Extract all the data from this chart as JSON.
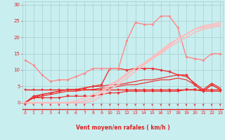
{
  "xlabel": "Vent moyen/en rafales ( km/h )",
  "background_color": "#c8eef0",
  "grid_color": "#a8cece",
  "line_color": "#dd2222",
  "x_ticks": [
    0,
    1,
    2,
    3,
    4,
    5,
    6,
    7,
    8,
    9,
    10,
    11,
    12,
    13,
    14,
    15,
    16,
    17,
    18,
    19,
    20,
    21,
    22,
    23
  ],
  "ylim": [
    -2,
    31
  ],
  "xlim": [
    -0.3,
    23.3
  ],
  "yticks": [
    0,
    5,
    10,
    15,
    20,
    25,
    30
  ],
  "lines": [
    {
      "x": [
        0,
        1,
        2,
        3,
        4,
        5,
        6,
        7,
        8,
        9,
        10,
        11,
        12,
        13,
        14,
        15,
        16,
        17,
        18,
        19,
        20,
        21,
        22,
        23
      ],
      "y": [
        4,
        4,
        4,
        4,
        4,
        4,
        4,
        4,
        4,
        4,
        4,
        4,
        4,
        4,
        4,
        4,
        4,
        4,
        4,
        4,
        4,
        4,
        4,
        4
      ],
      "color": "#ee2222",
      "lw": 1.0,
      "marker": "s",
      "ms": 1.5,
      "alpha": 1.0
    },
    {
      "x": [
        0,
        1,
        2,
        3,
        4,
        5,
        6,
        7,
        8,
        9,
        10,
        11,
        12,
        13,
        14,
        15,
        16,
        17,
        18,
        19,
        20,
        21,
        22,
        23
      ],
      "y": [
        0,
        1.5,
        1.5,
        1.5,
        1.5,
        2,
        2,
        2,
        2,
        2.5,
        3,
        3,
        3.5,
        3.5,
        3.5,
        3.5,
        3.5,
        3.5,
        3.5,
        4,
        4,
        3.5,
        3.5,
        3.5
      ],
      "color": "#ee2222",
      "lw": 0.8,
      "marker": "v",
      "ms": 2.5,
      "alpha": 1.0
    },
    {
      "x": [
        0,
        1,
        2,
        3,
        4,
        5,
        6,
        7,
        8,
        9,
        10,
        11,
        12,
        13,
        14,
        15,
        16,
        17,
        18,
        19,
        20,
        21,
        22,
        23
      ],
      "y": [
        0,
        1.5,
        2,
        2.5,
        3,
        3.5,
        3.5,
        4,
        4,
        4.5,
        4.5,
        5,
        5.5,
        5.5,
        6,
        6.5,
        7,
        7,
        7.5,
        7,
        5.5,
        3.5,
        5.5,
        4
      ],
      "color": "#ee2222",
      "lw": 0.8,
      "marker": null,
      "alpha": 1.0
    },
    {
      "x": [
        0,
        1,
        2,
        3,
        4,
        5,
        6,
        7,
        8,
        9,
        10,
        11,
        12,
        13,
        14,
        15,
        16,
        17,
        18,
        19,
        20,
        21,
        22,
        23
      ],
      "y": [
        0,
        1.5,
        2.5,
        3,
        3.5,
        4,
        4,
        4.5,
        5,
        5,
        5.5,
        5.5,
        6,
        6.5,
        7,
        7,
        7.5,
        8,
        8.5,
        8,
        6,
        4,
        6,
        4.5
      ],
      "color": "#ee2222",
      "lw": 0.8,
      "marker": null,
      "alpha": 1.0
    },
    {
      "x": [
        0,
        1,
        2,
        3,
        4,
        5,
        6,
        7,
        8,
        9,
        10,
        11,
        12,
        13,
        14,
        15,
        16,
        17,
        18,
        19,
        20,
        21,
        22,
        23
      ],
      "y": [
        0,
        2,
        2.5,
        3,
        3.5,
        4,
        4,
        4.5,
        5,
        5.5,
        10.5,
        10.5,
        10,
        10.5,
        10.5,
        10.5,
        10,
        9.5,
        8.5,
        8.5,
        5.5,
        3.5,
        5.5,
        4
      ],
      "color": "#ee3333",
      "lw": 1.0,
      "marker": "D",
      "ms": 2.0,
      "alpha": 1.0
    },
    {
      "x": [
        0,
        1,
        2,
        3,
        4,
        5,
        6,
        7,
        8,
        9,
        10,
        11,
        12,
        13,
        14,
        15,
        16,
        17,
        18,
        19,
        20,
        21,
        22,
        23
      ],
      "y": [
        13,
        11.5,
        8.5,
        6.5,
        7,
        7,
        8,
        9,
        10.5,
        10.5,
        10.5,
        10.5,
        19,
        24.5,
        24,
        24,
        26.5,
        26.5,
        23,
        14,
        13.5,
        13,
        15,
        15
      ],
      "color": "#ff8888",
      "lw": 1.0,
      "marker": "o",
      "ms": 2.0,
      "alpha": 1.0
    },
    {
      "x": [
        0,
        1,
        2,
        3,
        4,
        5,
        6,
        7,
        8,
        9,
        10,
        11,
        12,
        13,
        14,
        15,
        16,
        17,
        18,
        19,
        20,
        21,
        22,
        23
      ],
      "y": [
        0,
        0,
        0,
        0,
        0,
        0,
        0,
        0,
        0.5,
        2,
        4,
        5.5,
        7.5,
        9.5,
        11.5,
        13.5,
        15.5,
        17.5,
        19.5,
        21,
        22.5,
        23.5,
        24,
        24.5
      ],
      "color": "#ffbbbb",
      "lw": 1.2,
      "marker": null,
      "alpha": 1.0
    },
    {
      "x": [
        0,
        1,
        2,
        3,
        4,
        5,
        6,
        7,
        8,
        9,
        10,
        11,
        12,
        13,
        14,
        15,
        16,
        17,
        18,
        19,
        20,
        21,
        22,
        23
      ],
      "y": [
        0,
        0,
        0,
        0,
        0,
        0,
        0,
        0.5,
        1.5,
        3,
        5,
        6.5,
        8.5,
        10.5,
        12,
        14,
        16,
        18,
        19.5,
        21,
        22.5,
        23,
        23.5,
        24
      ],
      "color": "#ffbbbb",
      "lw": 1.2,
      "marker": null,
      "alpha": 1.0
    },
    {
      "x": [
        0,
        1,
        2,
        3,
        4,
        5,
        6,
        7,
        8,
        9,
        10,
        11,
        12,
        13,
        14,
        15,
        16,
        17,
        18,
        19,
        20,
        21,
        22,
        23
      ],
      "y": [
        0,
        0,
        0,
        0,
        0,
        0,
        0.5,
        1.5,
        2.5,
        3.5,
        5.5,
        7,
        9,
        10.5,
        12,
        13.5,
        15,
        17,
        18.5,
        20,
        21.5,
        22.5,
        23,
        23.5
      ],
      "color": "#ffbbbb",
      "lw": 1.2,
      "marker": null,
      "alpha": 1.0
    }
  ],
  "arrow_color": "#dd2222"
}
